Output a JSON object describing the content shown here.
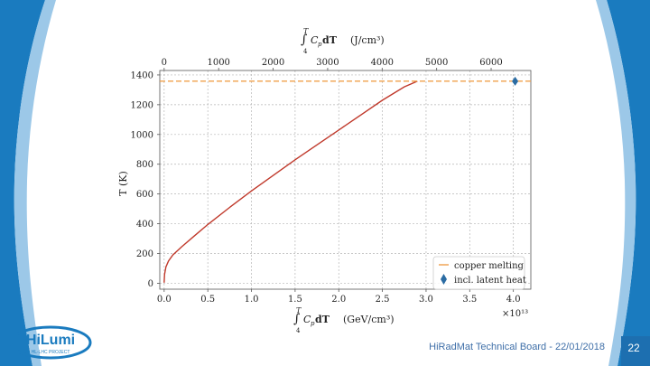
{
  "slide": {
    "footer": "HiRadMat Technical Board - 22/01/2018",
    "page_number": "22",
    "logo": {
      "text": "HiLumi",
      "subtext": "HL-LHC PROJECT"
    },
    "colors": {
      "accent_blue": "#1a7bbf",
      "footer_text": "#3f6fa8",
      "page_box": "#1d6fb0"
    }
  },
  "chart_data": {
    "type": "line",
    "top_axis_label_parts": {
      "integral_upper": "T",
      "integral_lower": "4",
      "expr": "C",
      "subscript": "p",
      "d": " dT",
      "units": "(J/cm³)"
    },
    "bottom_axis_label_parts": {
      "integral_upper": "T",
      "integral_lower": "4",
      "expr": "C",
      "subscript": "p",
      "d": " dT",
      "units": "(GeV/cm³)"
    },
    "ylabel": "T (K)",
    "x_exponent_label": "×10¹³",
    "xlim": [
      -0.05,
      4.2
    ],
    "ylim": [
      -40,
      1430
    ],
    "x_ticks": [
      0.0,
      0.5,
      1.0,
      1.5,
      2.0,
      2.5,
      3.0,
      3.5,
      4.0
    ],
    "x_tick_labels": [
      "0.0",
      "0.5",
      "1.0",
      "1.5",
      "2.0",
      "2.5",
      "3.0",
      "3.5",
      "4.0"
    ],
    "y_ticks": [
      0,
      200,
      400,
      600,
      800,
      1000,
      1200,
      1400
    ],
    "y_tick_labels": [
      "0",
      "200",
      "400",
      "600",
      "800",
      "1000",
      "1200",
      "1400"
    ],
    "top_ticks": [
      0,
      1000,
      2000,
      3000,
      4000,
      5000,
      6000
    ],
    "top_tick_labels": [
      "0",
      "1000",
      "2000",
      "3000",
      "4000",
      "5000",
      "6000"
    ],
    "top_per_bottom_unit": 1602,
    "grid": true,
    "legend_position": "bottom-right",
    "series": [
      {
        "kind": "curve",
        "color": "#c0392b",
        "x": [
          0.0,
          0.005,
          0.02,
          0.05,
          0.1,
          0.2,
          0.35,
          0.5,
          0.75,
          1.0,
          1.25,
          1.5,
          1.75,
          2.0,
          2.25,
          2.5,
          2.75,
          2.9
        ],
        "y": [
          4,
          60,
          110,
          150,
          190,
          245,
          320,
          395,
          510,
          620,
          725,
          830,
          930,
          1030,
          1130,
          1230,
          1320,
          1358
        ]
      },
      {
        "name": "copper melting",
        "kind": "hline",
        "y": 1358,
        "color": "#f0a04b"
      },
      {
        "name": "incl. latent heat",
        "kind": "marker",
        "x": [
          4.02
        ],
        "y": [
          1358
        ],
        "color": "#2b6ca3"
      }
    ]
  }
}
